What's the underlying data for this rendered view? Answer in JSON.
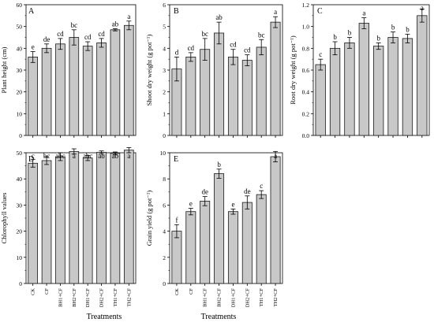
{
  "colors": {
    "bar_fill": "#c8c8c8",
    "bar_stroke": "#1a1a1a",
    "axis": "#000000"
  },
  "xlabel_common": "Treatments",
  "chart_data": [
    {
      "panel": "A",
      "type": "bar",
      "categories": [
        "CK",
        "CF",
        "BH1+CF",
        "BH2+CF",
        "DH1+CF",
        "DH2+CF",
        "TH1+CF",
        "TH2+CF"
      ],
      "values": [
        36,
        40,
        42,
        45,
        41,
        42.5,
        48.5,
        50.5
      ],
      "errors": [
        2.5,
        2,
        2.5,
        3.5,
        2,
        2,
        0.5,
        2
      ],
      "letters": [
        "e",
        "de",
        "cd",
        "bc",
        "cd",
        "cd",
        "ab",
        "a"
      ],
      "ylabel": "Plant height (cm)",
      "ylim": [
        0,
        60
      ],
      "yticks": [
        0,
        10,
        20,
        30,
        40,
        50,
        60
      ]
    },
    {
      "panel": "B",
      "type": "bar",
      "categories": [
        "CK",
        "CF",
        "BH1+CF",
        "BH2+CF",
        "DH1+CF",
        "DH2+CF",
        "TH1+CF",
        "TH2+CF"
      ],
      "values": [
        3.05,
        3.6,
        3.95,
        4.7,
        3.6,
        3.45,
        4.05,
        5.2
      ],
      "errors": [
        0.55,
        0.2,
        0.5,
        0.5,
        0.35,
        0.25,
        0.35,
        0.25
      ],
      "letters": [
        "d",
        "cd",
        "bc",
        "ab",
        "cd",
        "cd",
        "bc",
        "a"
      ],
      "ylabel": "Shoot dry weight (g pot⁻¹)",
      "ylim": [
        0,
        6
      ],
      "yticks": [
        0,
        1,
        2,
        3,
        4,
        5,
        6
      ]
    },
    {
      "panel": "C",
      "type": "bar",
      "categories": [
        "CK",
        "CF",
        "BH1+CF",
        "BH2+CF",
        "DH1+CF",
        "DH2+CF",
        "TH1+CF",
        "TH2+CF"
      ],
      "values": [
        0.65,
        0.8,
        0.85,
        1.03,
        0.82,
        0.9,
        0.89,
        1.1
      ],
      "errors": [
        0.05,
        0.06,
        0.05,
        0.05,
        0.03,
        0.05,
        0.04,
        0.06
      ],
      "letters": [
        "c",
        "b",
        "b",
        "a",
        "b",
        "b",
        "b",
        "a"
      ],
      "ylabel": "Root dry weight (g pot⁻¹)",
      "ylim": [
        0,
        1.2
      ],
      "yticks": [
        0,
        0.2,
        0.4,
        0.6,
        0.8,
        1.0,
        1.2
      ]
    },
    {
      "panel": "D",
      "type": "bar",
      "categories": [
        "CK",
        "CF",
        "BH1+CF",
        "BH2+CF",
        "DH1+CF",
        "DH2+CF",
        "TH1+CF",
        "TH2+CF"
      ],
      "values": [
        46,
        47,
        48.5,
        50.5,
        48,
        50.2,
        49.8,
        51
      ],
      "errors": [
        1.5,
        1.5,
        1.5,
        1,
        1,
        0.5,
        0.5,
        1
      ],
      "letters": [
        "c",
        "bc",
        "abc",
        "a",
        "abc",
        "ab",
        "ab",
        "a"
      ],
      "ylabel": "Chlorophyll values",
      "ylim": [
        0,
        50
      ],
      "yticks": [
        0,
        10,
        20,
        30,
        40,
        50
      ]
    },
    {
      "panel": "E",
      "type": "bar",
      "categories": [
        "CK",
        "CF",
        "BH1+CF",
        "BH2+CF",
        "DH1+CF",
        "DH2+CF",
        "TH1+CF",
        "TH2+CF"
      ],
      "values": [
        4.0,
        5.5,
        6.3,
        8.4,
        5.5,
        6.2,
        6.8,
        9.7
      ],
      "errors": [
        0.5,
        0.25,
        0.35,
        0.35,
        0.2,
        0.5,
        0.3,
        0.4
      ],
      "letters": [
        "f",
        "e",
        "de",
        "b",
        "e",
        "de",
        "c",
        "a"
      ],
      "ylabel": "Grain yield (g pot⁻¹)",
      "ylim": [
        0,
        10
      ],
      "yticks": [
        0,
        2,
        4,
        6,
        8,
        10
      ]
    }
  ]
}
